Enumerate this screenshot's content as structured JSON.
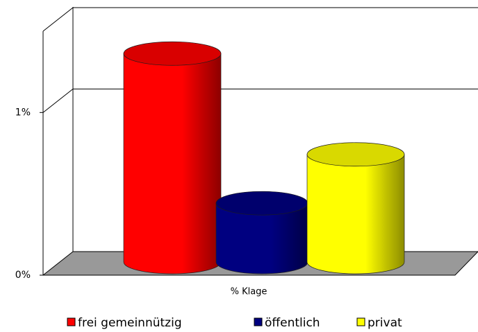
{
  "chart_data": {
    "type": "bar3d",
    "categories": [
      "% Klage"
    ],
    "series": [
      {
        "name": "frei gemeinnützig",
        "color": "#ff0000",
        "values": [
          1.29
        ]
      },
      {
        "name": "öffentlich",
        "color": "#000080",
        "values": [
          0.37
        ]
      },
      {
        "name": "privat",
        "color": "#ffff00",
        "values": [
          0.67
        ]
      }
    ],
    "ylim": [
      0,
      1.5
    ],
    "yticks": [
      {
        "value": 0,
        "label": "0%"
      },
      {
        "value": 1,
        "label": "1%"
      }
    ],
    "grid": true
  }
}
